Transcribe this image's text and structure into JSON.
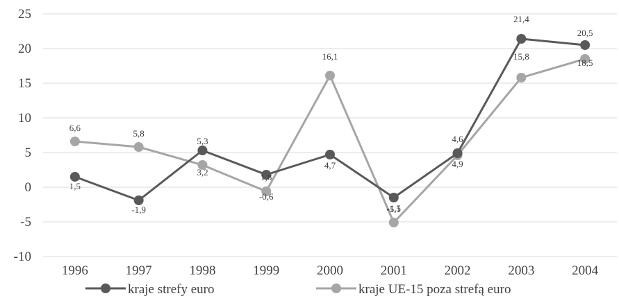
{
  "chart_data": {
    "type": "line",
    "title": "",
    "xlabel": "",
    "ylabel": "",
    "categories": [
      "1996",
      "1997",
      "1998",
      "1999",
      "2000",
      "2001",
      "2002",
      "2003",
      "2004"
    ],
    "ylim": [
      -10,
      25
    ],
    "yticks": [
      -10,
      -5,
      0,
      5,
      10,
      15,
      20,
      25
    ],
    "grid": true,
    "legend_position": "bottom",
    "series": [
      {
        "name": "kraje strefy euro",
        "color": "#595959",
        "values": [
          1.5,
          -1.9,
          5.3,
          1.8,
          4.7,
          -1.5,
          4.9,
          21.4,
          20.5
        ],
        "labels": [
          "1,5",
          "-1,9",
          "5,3",
          "1,8",
          "4,7",
          "-1,5",
          "4,9",
          "21,4",
          "20,5"
        ]
      },
      {
        "name": "kraje UE-15 poza strefą euro",
        "color": "#a6a6a6",
        "values": [
          6.6,
          5.8,
          3.2,
          -0.6,
          16.1,
          -5.1,
          4.6,
          15.8,
          18.5
        ],
        "labels": [
          "6,6",
          "5,8",
          "3,2",
          "-0,6",
          "16,1",
          "-5,1",
          "4,6",
          "15,8",
          "18,5"
        ]
      }
    ]
  }
}
